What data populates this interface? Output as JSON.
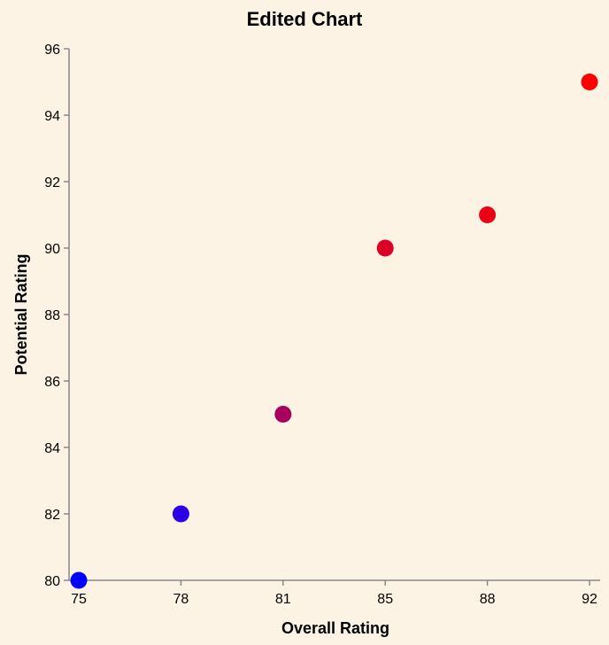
{
  "chart_data": {
    "type": "scatter",
    "title": "Edited Chart",
    "xlabel": "Overall Rating",
    "ylabel": "Potential Rating",
    "x_scale": "ordinal",
    "x_ticks": [
      "75",
      "78",
      "81",
      "85",
      "88",
      "92"
    ],
    "y_ticks": [
      "80",
      "82",
      "84",
      "86",
      "88",
      "90",
      "92",
      "94",
      "96"
    ],
    "ylim": [
      80,
      96
    ],
    "grid": false,
    "points": [
      {
        "x": "75",
        "y": 80,
        "color": "#0000ff"
      },
      {
        "x": "78",
        "y": 82,
        "color": "#2c00e6"
      },
      {
        "x": "81",
        "y": 85,
        "color": "#a7005e"
      },
      {
        "x": "85",
        "y": 90,
        "color": "#dc0024"
      },
      {
        "x": "88",
        "y": 91,
        "color": "#ec0014"
      },
      {
        "x": "92",
        "y": 95,
        "color": "#ff0000"
      }
    ]
  }
}
